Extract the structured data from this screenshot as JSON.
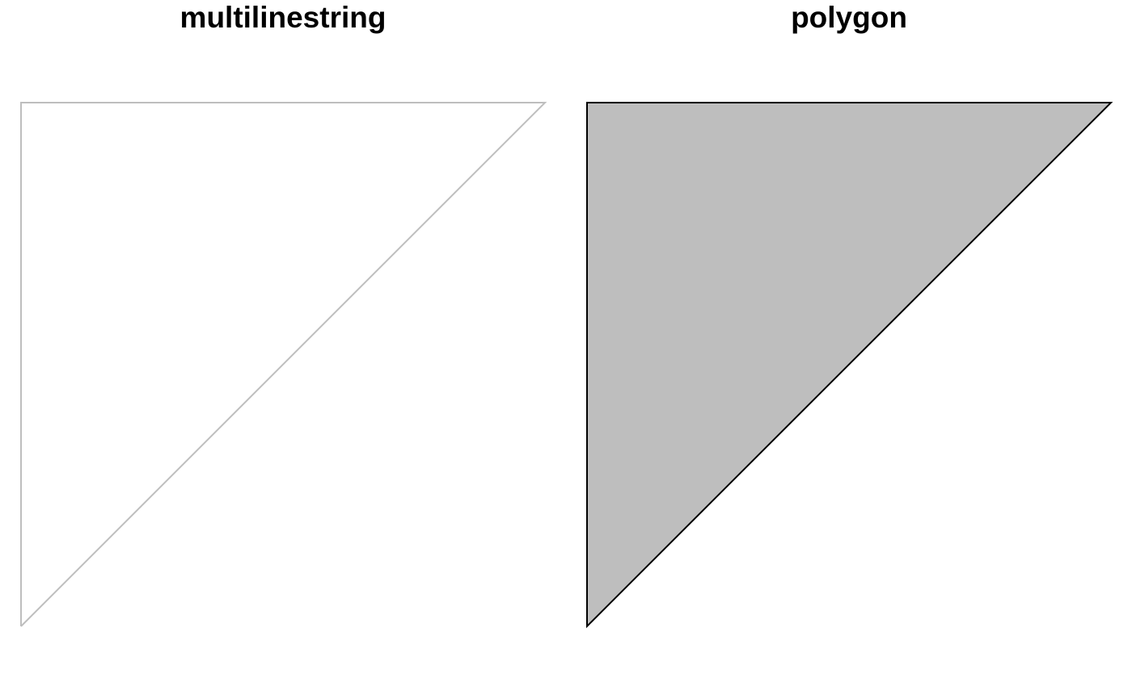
{
  "panels": [
    {
      "title": "multilinestring",
      "geometry_type": "multilinestring",
      "stroke_color": "#bebebe",
      "fill_color": "none",
      "coordinates": [
        [
          0,
          0
        ],
        [
          0,
          1
        ],
        [
          1,
          1
        ],
        [
          0,
          0
        ]
      ]
    },
    {
      "title": "polygon",
      "geometry_type": "polygon",
      "stroke_color": "#000000",
      "fill_color": "#bebebe",
      "coordinates": [
        [
          0,
          0
        ],
        [
          0,
          1
        ],
        [
          1,
          1
        ],
        [
          0,
          0
        ]
      ]
    }
  ]
}
